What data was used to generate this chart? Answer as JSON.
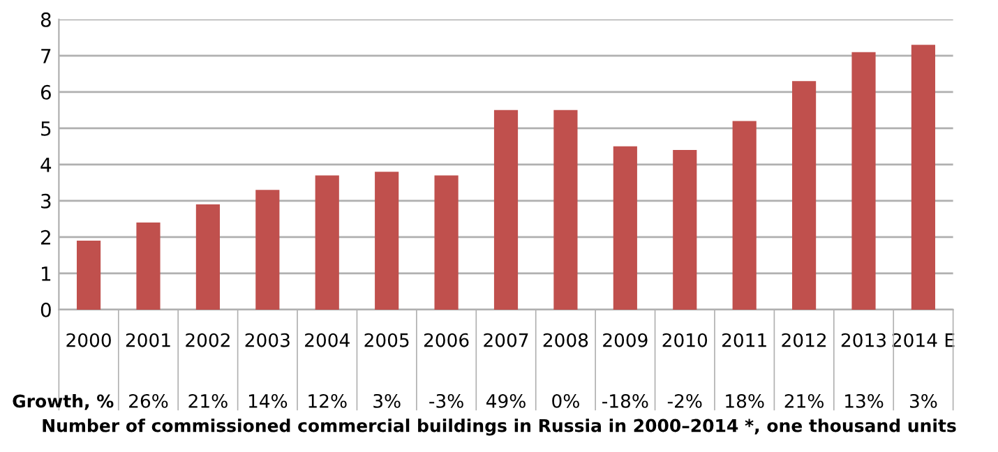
{
  "chart_data": {
    "type": "bar",
    "title": "Number of commissioned commercial buildings in Russia in 2000–2014 *, one thousand units",
    "categories": [
      "2000",
      "2001",
      "2002",
      "2003",
      "2004",
      "2005",
      "2006",
      "2007",
      "2008",
      "2009",
      "2010",
      "2011",
      "2012",
      "2013",
      "2014 E"
    ],
    "values": [
      1.9,
      2.4,
      2.9,
      3.3,
      3.7,
      3.8,
      3.7,
      5.5,
      5.5,
      4.5,
      4.4,
      5.2,
      6.3,
      7.1,
      7.3
    ],
    "color": "#c0504d",
    "ylim": [
      0,
      8
    ],
    "yticks": [
      0,
      1,
      2,
      3,
      4,
      5,
      6,
      7,
      8
    ],
    "grid": "y",
    "annotations": [
      "Growth, %",
      "26%",
      "21%",
      "14%",
      "12%",
      "3%",
      "-3%",
      "49%",
      "0%",
      "-18%",
      "-2%",
      "18%",
      "21%",
      "13%",
      "3%"
    ]
  }
}
